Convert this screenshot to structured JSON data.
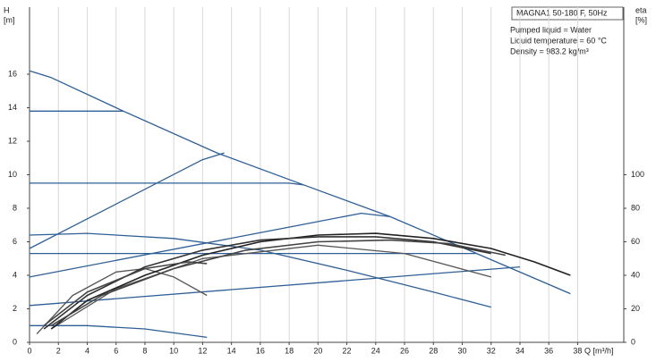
{
  "chart_data": {
    "type": "line",
    "title": "MAGNA1 50-180 F, 50Hz",
    "annotations": [
      "Pumped liquid = Water",
      "Liquid temperature = 60 °C",
      "Density = 983.2 kg/m³"
    ],
    "ylabel": [
      "H",
      "[m]"
    ],
    "y2label": [
      "eta",
      "[%]"
    ],
    "xlabel": "Q [m³/h]",
    "xlim": [
      0,
      41.2
    ],
    "ylim": [
      0,
      20
    ],
    "y2lim": [
      0,
      200
    ],
    "xticks": [
      0,
      2,
      4,
      6,
      8,
      10,
      12,
      14,
      16,
      18,
      20,
      22,
      24,
      26,
      28,
      30,
      32,
      34,
      36,
      38
    ],
    "yticks": [
      0,
      2,
      4,
      6,
      8,
      10,
      12,
      14,
      16
    ],
    "y2ticks": [
      0,
      20,
      40,
      60,
      80,
      100
    ],
    "grid": "x",
    "series": [
      {
        "color": "#2f5f96",
        "x": [
          0,
          1.5,
          6.5,
          13,
          19,
          25,
          31,
          37.5
        ],
        "values": [
          16.2,
          15.8,
          13.8,
          11.3,
          9.4,
          7.5,
          5.3,
          2.9
        ]
      },
      {
        "color": "#2f5f96",
        "x": [
          0,
          6.5
        ],
        "values": [
          13.8,
          13.8
        ]
      },
      {
        "color": "#2f5f96",
        "x": [
          0,
          18,
          19
        ],
        "values": [
          9.5,
          9.5,
          9.4
        ]
      },
      {
        "color": "#2f5f96",
        "x": [
          0,
          31
        ],
        "values": [
          5.3,
          5.3
        ]
      },
      {
        "color": "#2f5f96",
        "x": [
          0,
          12,
          13.5
        ],
        "values": [
          5.6,
          10.9,
          11.3
        ]
      },
      {
        "color": "#2f5f96",
        "x": [
          0,
          23,
          25
        ],
        "values": [
          3.9,
          7.7,
          7.5
        ]
      },
      {
        "color": "#2f5f96",
        "x": [
          0,
          34
        ],
        "values": [
          2.2,
          4.5
        ]
      },
      {
        "color": "#2f5f96",
        "x": [
          0,
          4,
          10,
          16,
          22,
          28,
          32
        ],
        "values": [
          6.4,
          6.5,
          6.2,
          5.5,
          4.3,
          3.0,
          2.1
        ]
      },
      {
        "color": "#2f5f96",
        "x": [
          0,
          4,
          8,
          12.3
        ],
        "values": [
          1.0,
          1.0,
          0.8,
          0.3
        ]
      },
      {
        "color": "#555555",
        "x": [
          0.5,
          3,
          6,
          8,
          10,
          12.3
        ],
        "values": [
          0.5,
          2.8,
          4.2,
          4.4,
          3.9,
          2.8
        ]
      },
      {
        "color": "#555555",
        "x": [
          1.5,
          6,
          12,
          20,
          26,
          32
        ],
        "values": [
          0.8,
          3.2,
          5.0,
          5.8,
          5.3,
          3.9
        ]
      },
      {
        "color": "#222222",
        "axis": "y2",
        "x": [
          1.5,
          4,
          8,
          12,
          16,
          20,
          24,
          28,
          32,
          35,
          37.5
        ],
        "values": [
          8,
          25,
          40,
          52,
          60,
          64,
          65,
          62,
          56,
          48,
          40
        ]
      },
      {
        "color": "#333333",
        "axis": "y2",
        "x": [
          1,
          4,
          8,
          12,
          16,
          20,
          24,
          28,
          32
        ],
        "values": [
          8,
          28,
          45,
          55,
          61,
          63,
          63,
          60,
          53
        ]
      },
      {
        "color": "#444444",
        "axis": "y2",
        "x": [
          1.5,
          5,
          10,
          15,
          20,
          25,
          29,
          33
        ],
        "values": [
          10,
          28,
          44,
          55,
          60,
          61,
          59,
          52
        ]
      },
      {
        "color": "#444444",
        "axis": "y2",
        "x": [
          1,
          4,
          8,
          11,
          12.3
        ],
        "values": [
          10,
          30,
          44,
          48,
          47
        ]
      }
    ]
  }
}
